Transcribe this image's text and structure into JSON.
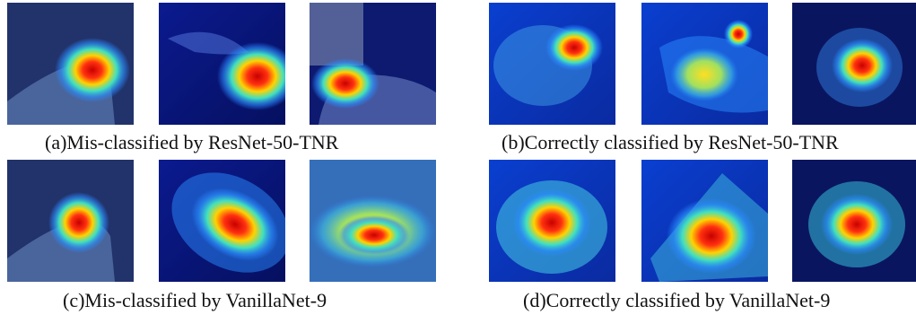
{
  "figure": {
    "captions": {
      "a": "(a)Mis-classified by ResNet-50-TNR",
      "b": "(b)Correctly classified by ResNet-50-TNR",
      "c": "(c)Mis-classified by VanillaNet-9",
      "d": "(d)Correctly classified by VanillaNet-9"
    },
    "panels": {
      "a": [
        "hand-holding-worm-heatmap",
        "fish-fins-heatmap",
        "hands-cupped-heatmap"
      ],
      "b": [
        "hedgehog-heatmap",
        "fish-heatmap",
        "flower-heatmap"
      ],
      "c": [
        "hand-holding-worm-heatmap",
        "fish-fins-heatmap",
        "hands-cupped-heatmap"
      ],
      "d": [
        "hedgehog-heatmap",
        "fish-heatmap",
        "flower-heatmap"
      ]
    },
    "colors": {
      "cold": "#0a1aa0",
      "cool": "#2a8bff",
      "warm": "#ffd200",
      "hot": "#e01010"
    }
  }
}
